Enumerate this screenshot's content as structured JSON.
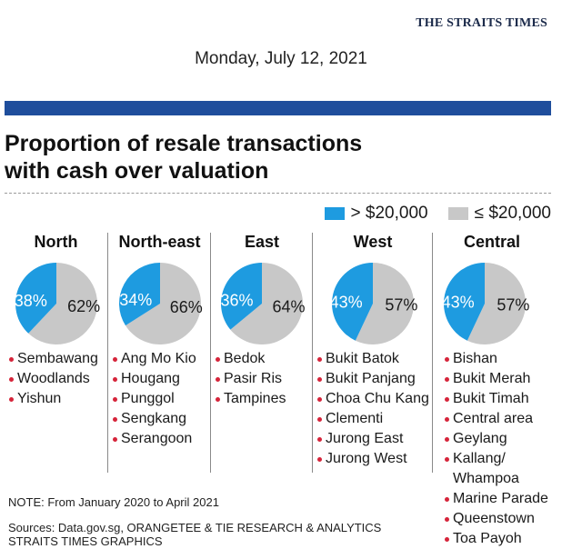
{
  "masthead": "THE STRAITS TIMES",
  "date": "Monday, July 12, 2021",
  "headline": {
    "line1": "Proportion of resale transactions",
    "line2": "with cash over valuation"
  },
  "colors": {
    "accent_bar": "#1f4e9c",
    "over_20000": "#1e9be0",
    "under_20000": "#c8c8c8",
    "bullet": "#d6243a"
  },
  "chart_data": {
    "type": "pie",
    "title": "Proportion of resale transactions with cash over valuation",
    "legend": {
      "placement": "top-right",
      "entries": [
        "> $20,000",
        "≤ $20,000"
      ]
    },
    "series_names": [
      "> $20,000",
      "≤ $20,000"
    ],
    "pies": [
      {
        "region": "North",
        "values": [
          38,
          62
        ],
        "labels": [
          "38%",
          "62%"
        ],
        "areas": [
          "Sembawang",
          "Woodlands",
          "Yishun"
        ]
      },
      {
        "region": "North-east",
        "values": [
          34,
          66
        ],
        "labels": [
          "34%",
          "66%"
        ],
        "areas": [
          "Ang Mo Kio",
          "Hougang",
          "Punggol",
          "Sengkang",
          "Serangoon"
        ]
      },
      {
        "region": "East",
        "values": [
          36,
          64
        ],
        "labels": [
          "36%",
          "64%"
        ],
        "areas": [
          "Bedok",
          "Pasir Ris",
          "Tampines"
        ]
      },
      {
        "region": "West",
        "values": [
          43,
          57
        ],
        "labels": [
          "43%",
          "57%"
        ],
        "areas": [
          "Bukit Batok",
          "Bukit Panjang",
          "Choa Chu Kang",
          "Clementi",
          "Jurong East",
          "Jurong West"
        ]
      },
      {
        "region": "Central",
        "values": [
          43,
          57
        ],
        "labels": [
          "43%",
          "57%"
        ],
        "areas": [
          "Bishan",
          "Bukit Merah",
          "Bukit Timah",
          "Central area",
          "Geylang",
          "Kallang/\nWhampoa",
          "Marine Parade",
          "Queenstown",
          "Toa Payoh"
        ]
      }
    ]
  },
  "note": "NOTE: From January 2020 to April 2021",
  "sources": {
    "line1": "Sources: Data.gov.sg, ORANGETEE & TIE RESEARCH & ANALYTICS",
    "line2": "STRAITS TIMES GRAPHICS"
  }
}
